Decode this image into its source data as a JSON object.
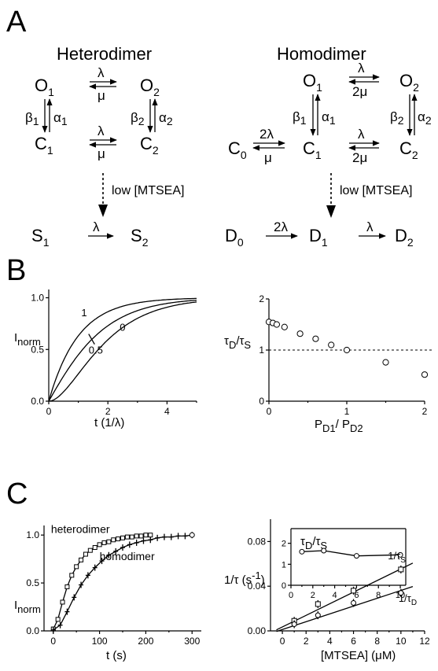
{
  "panels": {
    "a": "A",
    "b": "B",
    "c": "C"
  },
  "panelA": {
    "hetero_title": "Heterodimer",
    "homo_title": "Homodimer",
    "mtsea_label": "low [MTSEA]",
    "rates": {
      "lambda": "λ",
      "mu": "μ",
      "two_lambda": "2λ",
      "two_mu": "2μ",
      "alpha1": "α",
      "alpha2": "α",
      "beta1": "β",
      "beta2": "β"
    },
    "states": {
      "O": "O",
      "C": "C",
      "S": "S",
      "D": "D"
    },
    "subs": {
      "zero": "0",
      "one": "1",
      "two": "2"
    }
  },
  "chart_data": [
    {
      "type": "line",
      "panel": "B-left",
      "xlabel": "t (1/λ)",
      "ylabel": "I",
      "ylabel_sub": "norm",
      "xlim": [
        0,
        5
      ],
      "ylim": [
        0,
        1.08
      ],
      "xticks": [
        0,
        2,
        4
      ],
      "yticks": [
        "0.0",
        "0.5",
        "1.0"
      ],
      "series": [
        {
          "name": "1",
          "values": "I(t) for P_D1/P_D2 = 1"
        },
        {
          "name": "0.5",
          "values": "I(t) for P_D1/P_D2 = 0.5"
        },
        {
          "name": "0",
          "values": "I(t) for P_D1/P_D2 = 0"
        }
      ],
      "curve_params": [
        1,
        0.5,
        0
      ]
    },
    {
      "type": "scatter",
      "panel": "B-right",
      "xlabel": "P",
      "xlabel_parts": {
        "a": "P",
        "a_sub": "D1",
        "sep": "/ P",
        "b_sub": "D2"
      },
      "ylabel": "τ",
      "ylabel_parts": {
        "a": "τ",
        "a_sub": "D",
        "sep": "/τ",
        "b_sub": "S"
      },
      "xlim": [
        0,
        2
      ],
      "ylim": [
        0,
        2
      ],
      "xticks": [
        0,
        1,
        2
      ],
      "yticks": [
        0,
        1,
        2
      ],
      "x": [
        0,
        0.05,
        0.1,
        0.2,
        0.4,
        0.6,
        0.8,
        1.0,
        1.5,
        2.0
      ],
      "y": [
        1.55,
        1.53,
        1.5,
        1.45,
        1.32,
        1.22,
        1.1,
        1.0,
        0.76,
        0.52
      ],
      "reference_line": 1
    },
    {
      "type": "line",
      "panel": "C-left",
      "xlabel": "t (s)",
      "ylabel": "I",
      "ylabel_sub": "norm",
      "xlim": [
        -20,
        320
      ],
      "ylim": [
        0,
        1.1
      ],
      "xticks": [
        0,
        100,
        200,
        300
      ],
      "yticks": [
        "0.0",
        "0.5",
        "1.0"
      ],
      "series": [
        {
          "name": "heterodimer",
          "x": [
            0,
            10,
            20,
            30,
            40,
            50,
            60,
            70,
            80,
            90,
            100,
            110,
            120,
            130,
            140,
            150,
            160,
            170,
            180,
            190,
            200,
            210
          ],
          "y": [
            0.02,
            0.12,
            0.3,
            0.46,
            0.58,
            0.67,
            0.74,
            0.8,
            0.84,
            0.87,
            0.9,
            0.92,
            0.93,
            0.95,
            0.96,
            0.97,
            0.98,
            0.98,
            0.99,
            0.99,
            1.0,
            1.0
          ]
        },
        {
          "name": "homodimer",
          "x": [
            0,
            15,
            30,
            45,
            60,
            75,
            90,
            105,
            120,
            135,
            150,
            165,
            180,
            195,
            210,
            225,
            240,
            255,
            270,
            285,
            300
          ],
          "y": [
            0.01,
            0.06,
            0.2,
            0.35,
            0.48,
            0.58,
            0.66,
            0.73,
            0.79,
            0.83,
            0.87,
            0.9,
            0.92,
            0.94,
            0.95,
            0.97,
            0.98,
            0.98,
            0.99,
            0.99,
            1.0
          ]
        }
      ]
    },
    {
      "type": "scatter",
      "panel": "C-right",
      "xlabel": "[MTSEA] (μM)",
      "ylabel": "1/τ (s",
      "ylabel_sup": "-1",
      "ylabel_end": ")",
      "xlim": [
        -1,
        12
      ],
      "ylim": [
        0,
        0.1
      ],
      "xticks": [
        0,
        2,
        4,
        6,
        8,
        10,
        12
      ],
      "yticks": [
        "0.00",
        "0.04",
        "0.08"
      ],
      "series": [
        {
          "name": "1/τ",
          "name_sub": "S",
          "x": [
            1,
            3,
            6,
            10
          ],
          "y": [
            0.009,
            0.024,
            0.036,
            0.055
          ],
          "fit": [
            0.0035,
            0.0052
          ]
        },
        {
          "name": "1/τ",
          "name_sub": "D",
          "x": [
            1,
            3,
            6,
            10
          ],
          "y": [
            0.006,
            0.014,
            0.025,
            0.034
          ],
          "fit": [
            0.0012,
            0.0035
          ]
        }
      ],
      "inset": {
        "title": "τ",
        "title_parts": {
          "a": "τ",
          "a_sub": "D",
          "sep": "/τ",
          "b_sub": "S"
        },
        "xlim": [
          0,
          10.5
        ],
        "ylim": [
          0,
          2.7
        ],
        "xticks": [
          0,
          2,
          4,
          6,
          8,
          10
        ],
        "yticks": [
          0,
          1,
          2
        ],
        "x": [
          1,
          3,
          6,
          10
        ],
        "y": [
          1.6,
          1.65,
          1.4,
          1.45
        ]
      }
    }
  ]
}
